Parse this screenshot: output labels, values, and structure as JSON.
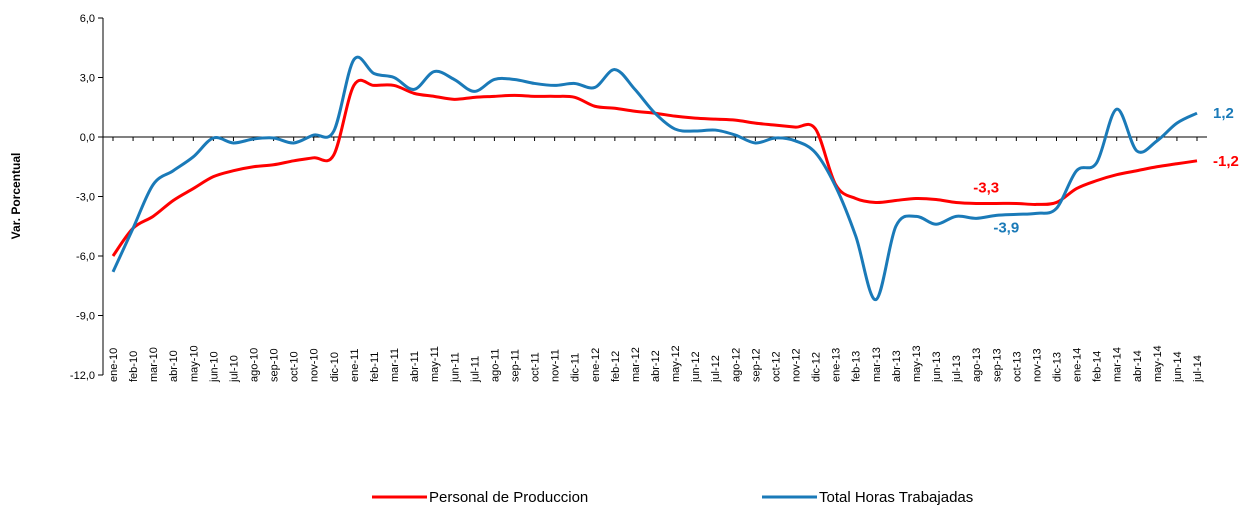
{
  "chart_data": {
    "type": "line",
    "y_axis_label": "Var. Porcentual",
    "categories": [
      "ene-10",
      "feb-10",
      "mar-10",
      "abr-10",
      "may-10",
      "jun-10",
      "jul-10",
      "ago-10",
      "sep-10",
      "oct-10",
      "nov-10",
      "dic-10",
      "ene-11",
      "feb-11",
      "mar-11",
      "abr-11",
      "may-11",
      "jun-11",
      "jul-11",
      "ago-11",
      "sep-11",
      "oct-11",
      "nov-11",
      "dic-11",
      "ene-12",
      "feb-12",
      "mar-12",
      "abr-12",
      "may-12",
      "jun-12",
      "jul-12",
      "ago-12",
      "sep-12",
      "oct-12",
      "nov-12",
      "dic-12",
      "ene-13",
      "feb-13",
      "mar-13",
      "abr-13",
      "may-13",
      "jun-13",
      "jul-13",
      "ago-13",
      "sep-13",
      "oct-13",
      "nov-13",
      "dic-13",
      "ene-14",
      "feb-14",
      "mar-14",
      "abr-14",
      "may-14",
      "jun-14",
      "jul-14"
    ],
    "series": [
      {
        "name": "Personal de Produccion",
        "color": "#ff0000",
        "values": [
          -6.0,
          -4.6,
          -4.0,
          -3.2,
          -2.6,
          -2.0,
          -1.7,
          -1.5,
          -1.4,
          -1.2,
          -1.05,
          -0.9,
          2.6,
          2.6,
          2.6,
          2.2,
          2.05,
          1.9,
          2.0,
          2.05,
          2.1,
          2.05,
          2.05,
          2.0,
          1.55,
          1.45,
          1.3,
          1.2,
          1.05,
          0.95,
          0.9,
          0.85,
          0.7,
          0.6,
          0.5,
          0.4,
          -2.4,
          -3.1,
          -3.3,
          -3.2,
          -3.1,
          -3.15,
          -3.3,
          -3.35,
          -3.35,
          -3.35,
          -3.4,
          -3.3,
          -2.6,
          -2.2,
          -1.9,
          -1.7,
          -1.5,
          -1.35,
          -1.2
        ]
      },
      {
        "name": "Total Horas Trabajadas",
        "color": "#1a7ab8",
        "values": [
          -6.8,
          -4.6,
          -2.4,
          -1.7,
          -1.0,
          -0.05,
          -0.3,
          -0.1,
          -0.05,
          -0.3,
          0.1,
          0.3,
          3.9,
          3.2,
          3.0,
          2.4,
          3.3,
          2.9,
          2.3,
          2.9,
          2.9,
          2.7,
          2.6,
          2.7,
          2.5,
          3.4,
          2.4,
          1.2,
          0.4,
          0.3,
          0.35,
          0.1,
          -0.3,
          -0.05,
          -0.2,
          -0.8,
          -2.5,
          -5.0,
          -8.2,
          -4.5,
          -4.0,
          -4.4,
          -4.0,
          -4.1,
          -3.95,
          -3.9,
          -3.85,
          -3.6,
          -1.7,
          -1.3,
          1.4,
          -0.7,
          -0.2,
          0.7,
          1.2
        ]
      }
    ],
    "annotations": [
      {
        "text": "-3,3",
        "x": "ago-13",
        "y": -3.3,
        "color": "#ff0000"
      },
      {
        "text": "-1,2",
        "x": "jul-14",
        "y": -1.2,
        "color": "#ff0000"
      },
      {
        "text": "-3,9",
        "x": "sep-13",
        "y": -3.9,
        "color": "#1a7ab8"
      },
      {
        "text": "1,2",
        "x": "jul-14",
        "y": 1.2,
        "color": "#1a7ab8"
      }
    ],
    "ylim": [
      -12,
      6
    ],
    "yticks": [
      {
        "value": -12,
        "label": "-12,0"
      },
      {
        "value": -9,
        "label": "-9,0"
      },
      {
        "value": -6,
        "label": "-6,0"
      },
      {
        "value": -3,
        "label": "-3,0"
      },
      {
        "value": 0,
        "label": "0,0"
      },
      {
        "value": 3,
        "label": "3,0"
      },
      {
        "value": 6,
        "label": "6,0"
      }
    ],
    "grid": false,
    "legend": "bottom"
  }
}
